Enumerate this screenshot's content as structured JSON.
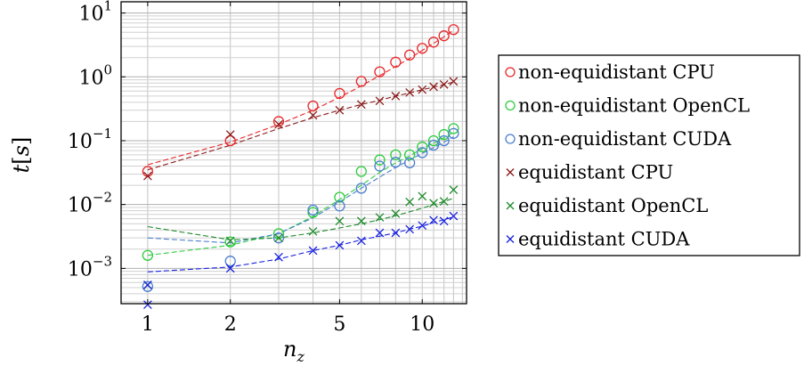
{
  "chart_data": {
    "type": "scatter",
    "xlabel": "n_z",
    "ylabel": "t[s]",
    "xscale": "log",
    "yscale": "log",
    "xlim": [
      0.8,
      14.5
    ],
    "ylim": [
      0.00028,
      15
    ],
    "x_ticks": [
      {
        "value": 1,
        "label": "1"
      },
      {
        "value": 2,
        "label": "2"
      },
      {
        "value": 5,
        "label": "5"
      },
      {
        "value": 10,
        "label": "10"
      }
    ],
    "y_ticks": [
      {
        "value": 0.001,
        "mantissa": "10",
        "exp": "−3"
      },
      {
        "value": 0.01,
        "mantissa": "10",
        "exp": "−2"
      },
      {
        "value": 0.1,
        "mantissa": "10",
        "exp": "−1"
      },
      {
        "value": 1,
        "mantissa": "10",
        "exp": "0"
      },
      {
        "value": 10,
        "mantissa": "10",
        "exp": "1"
      }
    ],
    "grid": true,
    "legend_position": "right",
    "series": [
      {
        "name": "non-equidistant CPU",
        "marker": "circle",
        "color": "#e8262a",
        "x": [
          1,
          2,
          3,
          4,
          5,
          6,
          7,
          8,
          9,
          10,
          11,
          12,
          13
        ],
        "y": [
          0.033,
          0.1,
          0.2,
          0.35,
          0.55,
          0.85,
          1.2,
          1.7,
          2.2,
          2.8,
          3.5,
          4.4,
          5.5
        ],
        "fit": [
          0.042,
          0.095,
          0.18,
          0.3,
          0.48,
          0.72,
          1.05,
          1.45,
          1.95,
          2.6,
          3.35,
          4.25,
          5.4
        ]
      },
      {
        "name": "equidistant CPU",
        "marker": "cross",
        "color": "#8b1a1a",
        "x": [
          1,
          2,
          3,
          4,
          5,
          6,
          7,
          8,
          9,
          10,
          11,
          12,
          13
        ],
        "y": [
          0.028,
          0.125,
          0.18,
          0.25,
          0.3,
          0.37,
          0.42,
          0.5,
          0.57,
          0.63,
          0.7,
          0.76,
          0.85
        ],
        "fit": [
          0.035,
          0.085,
          0.155,
          0.23,
          0.3,
          0.37,
          0.43,
          0.5,
          0.56,
          0.63,
          0.69,
          0.76,
          0.83
        ]
      },
      {
        "name": "non-equidistant OpenCL",
        "marker": "circle",
        "color": "#2ecc3e",
        "x": [
          1,
          2,
          3,
          4,
          5,
          6,
          7,
          8,
          9,
          10,
          11,
          12,
          13
        ],
        "y": [
          0.0016,
          0.0026,
          0.0035,
          0.0075,
          0.013,
          0.033,
          0.05,
          0.06,
          0.06,
          0.08,
          0.1,
          0.125,
          0.155
        ],
        "fit": [
          0.0016,
          0.0023,
          0.0035,
          0.0065,
          0.012,
          0.02,
          0.032,
          0.045,
          0.058,
          0.075,
          0.092,
          0.112,
          0.135
        ]
      },
      {
        "name": "non-equidistant CUDA",
        "marker": "circle",
        "color": "#4a7fd0",
        "x": [
          1,
          2,
          3,
          4,
          5,
          6,
          7,
          8,
          9,
          10,
          11,
          12,
          13
        ],
        "y": [
          0.00052,
          0.0013,
          0.003,
          0.0082,
          0.0095,
          0.018,
          0.04,
          0.046,
          0.045,
          0.065,
          0.085,
          0.1,
          0.13
        ],
        "fit": [
          0.003,
          0.0025,
          0.0035,
          0.0062,
          0.011,
          0.018,
          0.027,
          0.038,
          0.05,
          0.063,
          0.078,
          0.095,
          0.115
        ]
      },
      {
        "name": "equidistant OpenCL",
        "marker": "cross",
        "color": "#1e8b2a",
        "x": [
          1,
          2,
          3,
          4,
          5,
          6,
          7,
          8,
          9,
          10,
          11,
          12,
          13
        ],
        "y": [
          0.00055,
          0.0027,
          0.003,
          0.0038,
          0.0055,
          0.0055,
          0.0063,
          0.0072,
          0.011,
          0.0135,
          0.0105,
          0.0112,
          0.017
        ],
        "fit": [
          0.0045,
          0.0028,
          0.003,
          0.0036,
          0.0043,
          0.005,
          0.0058,
          0.0067,
          0.0077,
          0.0088,
          0.01,
          0.0112,
          0.0125
        ]
      },
      {
        "name": "equidistant CUDA",
        "marker": "cross",
        "color": "#1a22e0",
        "x": [
          1,
          1,
          2,
          3,
          4,
          5,
          6,
          7,
          8,
          9,
          10,
          11,
          12,
          13
        ],
        "y": [
          0.00027,
          0.00055,
          0.001,
          0.0015,
          0.0019,
          0.0023,
          0.0027,
          0.0036,
          0.0036,
          0.0041,
          0.0047,
          0.0057,
          0.0055,
          0.0066
        ],
        "fit": [
          0.00088,
          0.00105,
          0.0014,
          0.0019,
          0.0023,
          0.0028,
          0.0032,
          0.0036,
          0.0041,
          0.0046,
          0.0052,
          0.0058,
          0.0064
        ]
      }
    ],
    "legend": [
      {
        "label": "non-equidistant CPU",
        "marker": "circle",
        "color": "#e8262a"
      },
      {
        "label": "non-equidistant OpenCL",
        "marker": "circle",
        "color": "#2ecc3e"
      },
      {
        "label": "non-equidistant CUDA",
        "marker": "circle",
        "color": "#4a7fd0"
      },
      {
        "label": "equidistant CPU",
        "marker": "cross",
        "color": "#8b1a1a"
      },
      {
        "label": "equidistant OpenCL",
        "marker": "cross",
        "color": "#1e8b2a"
      },
      {
        "label": "equidistant CUDA",
        "marker": "cross",
        "color": "#1a22e0"
      }
    ]
  }
}
